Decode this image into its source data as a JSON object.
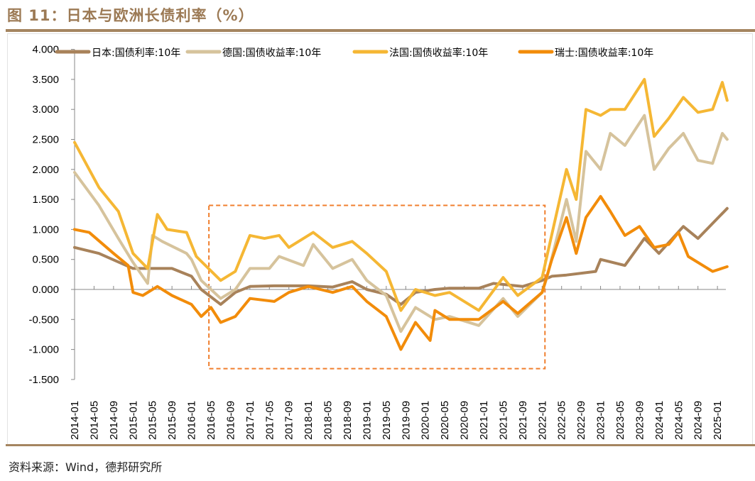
{
  "title": "图 11：日本与欧洲长债利率（%）",
  "source": "资料来源：Wind，德邦研究所",
  "chart_data": {
    "type": "line",
    "title": "",
    "xlabel": "",
    "ylabel": "",
    "ylim": [
      -1.5,
      4.0
    ],
    "yticks": [
      "4.000",
      "3.500",
      "3.000",
      "2.500",
      "2.000",
      "1.500",
      "1.000",
      "0.500",
      "0.000",
      "-0.500",
      "-1.000",
      "-1.500"
    ],
    "ytick_values": [
      4.0,
      3.5,
      3.0,
      2.5,
      2.0,
      1.5,
      1.0,
      0.5,
      0.0,
      -0.5,
      -1.0,
      -1.5
    ],
    "xticks": [
      "2014-01",
      "2014-05",
      "2014-09",
      "2015-01",
      "2015-05",
      "2015-09",
      "2016-01",
      "2016-05",
      "2016-09",
      "2017-01",
      "2017-05",
      "2017-09",
      "2018-01",
      "2018-05",
      "2018-09",
      "2019-01",
      "2019-05",
      "2019-09",
      "2020-01",
      "2020-05",
      "2020-09",
      "2021-01",
      "2021-05",
      "2021-09",
      "2022-01",
      "2022-05",
      "2022-09",
      "2023-01",
      "2023-05",
      "2023-09",
      "2024-01",
      "2024-05",
      "2024-09",
      "2025-01"
    ],
    "legend_position": "top",
    "grid": false,
    "highlight_box": {
      "x_range": [
        "2016-04",
        "2022-01"
      ],
      "y_range": [
        -1.32,
        1.4
      ],
      "color": "#f07f2e",
      "style": "dashed"
    },
    "series": [
      {
        "name": "日本:国债利率:10年",
        "color": "#a8825a",
        "x": [
          "2014-01",
          "2014-06",
          "2015-01",
          "2015-04",
          "2015-09",
          "2016-01",
          "2016-03",
          "2016-07",
          "2016-10",
          "2017-01",
          "2017-06",
          "2018-01",
          "2018-06",
          "2018-10",
          "2019-01",
          "2019-05",
          "2019-08",
          "2019-11",
          "2020-03",
          "2020-06",
          "2020-12",
          "2021-03",
          "2021-09",
          "2022-01",
          "2022-03",
          "2022-06",
          "2022-12",
          "2023-01",
          "2023-06",
          "2023-10",
          "2024-01",
          "2024-06",
          "2024-09",
          "2024-12",
          "2025-03"
        ],
        "values": [
          0.7,
          0.6,
          0.35,
          0.35,
          0.35,
          0.22,
          0.0,
          -0.25,
          -0.05,
          0.05,
          0.06,
          0.06,
          0.04,
          0.13,
          0.0,
          -0.08,
          -0.25,
          -0.05,
          0.0,
          0.02,
          0.02,
          0.1,
          0.05,
          0.15,
          0.22,
          0.24,
          0.3,
          0.5,
          0.4,
          0.85,
          0.6,
          1.05,
          0.85,
          1.1,
          1.35
        ]
      },
      {
        "name": "德国:国债收益率:10年",
        "color": "#d6c39c",
        "x": [
          "2014-01",
          "2014-06",
          "2014-10",
          "2015-01",
          "2015-04",
          "2015-05",
          "2015-07",
          "2015-12",
          "2016-01",
          "2016-03",
          "2016-07",
          "2016-10",
          "2017-01",
          "2017-05",
          "2017-07",
          "2017-12",
          "2018-02",
          "2018-06",
          "2018-10",
          "2019-01",
          "2019-05",
          "2019-08",
          "2019-11",
          "2020-03",
          "2020-06",
          "2020-12",
          "2021-05",
          "2021-08",
          "2022-01",
          "2022-02",
          "2022-06",
          "2022-08",
          "2022-10",
          "2023-01",
          "2023-03",
          "2023-06",
          "2023-10",
          "2023-12",
          "2024-03",
          "2024-06",
          "2024-09",
          "2024-12",
          "2025-02",
          "2025-03"
        ],
        "values": [
          1.95,
          1.4,
          0.85,
          0.45,
          0.1,
          0.9,
          0.8,
          0.6,
          0.5,
          0.15,
          -0.15,
          0.0,
          0.35,
          0.35,
          0.55,
          0.4,
          0.75,
          0.35,
          0.5,
          0.15,
          -0.1,
          -0.7,
          -0.3,
          -0.5,
          -0.45,
          -0.6,
          -0.15,
          -0.45,
          -0.05,
          0.2,
          1.5,
          0.8,
          2.3,
          2.0,
          2.6,
          2.4,
          2.9,
          2.0,
          2.35,
          2.6,
          2.15,
          2.1,
          2.6,
          2.5
        ]
      },
      {
        "name": "法国:国债收益率:10年",
        "color": "#f5b734",
        "x": [
          "2014-01",
          "2014-06",
          "2014-10",
          "2015-01",
          "2015-04",
          "2015-06",
          "2015-08",
          "2015-12",
          "2016-02",
          "2016-07",
          "2016-10",
          "2017-01",
          "2017-04",
          "2017-07",
          "2017-09",
          "2018-02",
          "2018-06",
          "2018-10",
          "2019-01",
          "2019-05",
          "2019-08",
          "2019-11",
          "2020-03",
          "2020-06",
          "2020-12",
          "2021-05",
          "2021-08",
          "2022-01",
          "2022-06",
          "2022-08",
          "2022-10",
          "2023-01",
          "2023-03",
          "2023-06",
          "2023-10",
          "2023-12",
          "2024-03",
          "2024-06",
          "2024-09",
          "2024-12",
          "2025-02",
          "2025-03"
        ],
        "values": [
          2.45,
          1.7,
          1.3,
          0.6,
          0.35,
          1.25,
          1.0,
          0.95,
          0.55,
          0.15,
          0.3,
          0.9,
          0.85,
          0.9,
          0.7,
          0.95,
          0.7,
          0.8,
          0.6,
          0.3,
          -0.35,
          0.0,
          -0.1,
          -0.05,
          -0.35,
          0.2,
          -0.1,
          0.2,
          2.0,
          1.5,
          3.0,
          2.9,
          3.0,
          3.0,
          3.5,
          2.55,
          2.85,
          3.2,
          2.95,
          3.0,
          3.45,
          3.15
        ]
      },
      {
        "name": "瑞士:国债收益率:10年",
        "color": "#f28c0a",
        "x": [
          "2014-01",
          "2014-04",
          "2014-09",
          "2014-12",
          "2015-01",
          "2015-03",
          "2015-06",
          "2015-09",
          "2016-01",
          "2016-03",
          "2016-05",
          "2016-07",
          "2016-10",
          "2017-01",
          "2017-06",
          "2017-09",
          "2018-01",
          "2018-06",
          "2018-10",
          "2019-01",
          "2019-05",
          "2019-08",
          "2019-11",
          "2020-02",
          "2020-03",
          "2020-06",
          "2020-12",
          "2021-05",
          "2021-08",
          "2022-01",
          "2022-03",
          "2022-06",
          "2022-08",
          "2022-10",
          "2023-01",
          "2023-03",
          "2023-06",
          "2023-09",
          "2023-12",
          "2024-03",
          "2024-05",
          "2024-07",
          "2024-10",
          "2024-12",
          "2025-03"
        ],
        "values": [
          1.0,
          0.95,
          0.6,
          0.4,
          -0.05,
          -0.1,
          0.05,
          -0.1,
          -0.25,
          -0.45,
          -0.3,
          -0.55,
          -0.45,
          -0.15,
          -0.2,
          -0.05,
          0.05,
          -0.05,
          0.05,
          -0.2,
          -0.45,
          -1.0,
          -0.55,
          -0.85,
          -0.35,
          -0.5,
          -0.5,
          -0.2,
          -0.4,
          -0.05,
          0.5,
          1.2,
          0.6,
          1.2,
          1.55,
          1.3,
          0.9,
          1.05,
          0.7,
          0.75,
          0.95,
          0.55,
          0.4,
          0.3,
          0.38
        ]
      }
    ]
  }
}
